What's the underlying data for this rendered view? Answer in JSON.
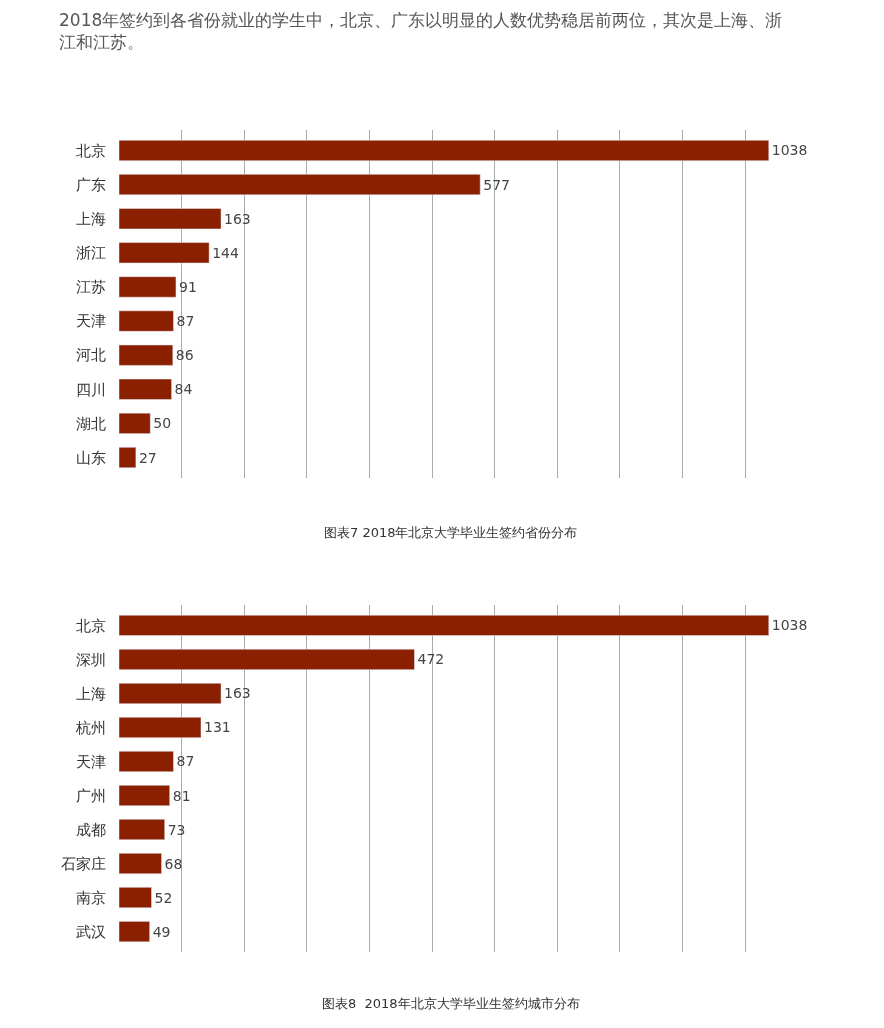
{
  "chart_data": [
    {
      "type": "bar",
      "orientation": "horizontal",
      "title": "2018年签约到各省份就业的学生中，北京、广东以明显的人数优势稳居前两位，其次是上海、浙江和江苏。",
      "categories": [
        "北京",
        "广东",
        "上海",
        "浙江",
        "江苏",
        "天津",
        "河北",
        "四川",
        "湖北",
        "山东"
      ],
      "values": [
        1038,
        577,
        163,
        144,
        91,
        87,
        86,
        84,
        50,
        27
      ],
      "color": "#8b2000",
      "data_labels": true,
      "grid": "x",
      "tick_labels": "y",
      "annotations": [
        "图表7 2018年北京大学毕业生签约省份分布"
      ]
    },
    {
      "type": "bar",
      "orientation": "horizontal",
      "categories": [
        "北京",
        "深圳",
        "上海",
        "杭州",
        "天津",
        "广州",
        "成都",
        "石家庄",
        "南京",
        "武汉"
      ],
      "values": [
        1038,
        472,
        163,
        131,
        87,
        81,
        73,
        68,
        52,
        49
      ],
      "color": "#8b2000",
      "data_labels": true,
      "grid": "x",
      "tick_labels": "y",
      "annotations": [
        "图表8  2018年北京大学毕业生签约城市分布"
      ]
    }
  ]
}
